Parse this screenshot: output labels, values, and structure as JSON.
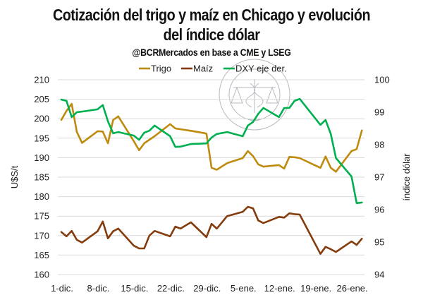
{
  "chart_data": {
    "type": "line",
    "title": "Cotización del trigo y maíz en Chicago y evolución del índice dólar",
    "title_lines": [
      "Cotización del trigo y maíz en Chicago y evolución",
      "del índice dólar"
    ],
    "subtitle": "@BCRMercados en base a CME y LSEG",
    "xlabel": "",
    "ylabel": "U$S/t",
    "y2label": "índice dólar",
    "ylim": [
      160,
      210
    ],
    "y_ticks": [
      160,
      165,
      170,
      175,
      180,
      185,
      190,
      195,
      200,
      205,
      210
    ],
    "y2lim": [
      94,
      100
    ],
    "y2_ticks": [
      94,
      95,
      96,
      97,
      98,
      99,
      100
    ],
    "x_tick_labels": [
      "1-dic.",
      "8-dic.",
      "15-dic.",
      "22-dic.",
      "29-dic.",
      "5-ene.",
      "12-ene.",
      "19-ene.",
      "26-ene."
    ],
    "x_tick_days": [
      0,
      7,
      14,
      21,
      28,
      35,
      42,
      49,
      56
    ],
    "grid": true,
    "legend_position": "top-center",
    "x_days": [
      0,
      1,
      2,
      3,
      4,
      7,
      8,
      9,
      10,
      11,
      14,
      15,
      16,
      17,
      18,
      21,
      22,
      23,
      25,
      28,
      29,
      30,
      32,
      35,
      36,
      37,
      38,
      39,
      42,
      43,
      44,
      45,
      46,
      50,
      51,
      52,
      53,
      56,
      57,
      58
    ],
    "x": [
      "1-dic.",
      "2-dic.",
      "3-dic.",
      "4-dic.",
      "5-dic.",
      "8-dic.",
      "9-dic.",
      "10-dic.",
      "11-dic.",
      "12-dic.",
      "15-dic.",
      "16-dic.",
      "17-dic.",
      "18-dic.",
      "19-dic.",
      "22-dic.",
      "23-dic.",
      "24-dic.",
      "26-dic.",
      "29-dic.",
      "30-dic.",
      "31-dic.",
      "2-ene.",
      "5-ene.",
      "6-ene.",
      "7-ene.",
      "8-ene.",
      "9-ene.",
      "12-ene.",
      "13-ene.",
      "14-ene.",
      "15-ene.",
      "16-ene.",
      "20-ene.",
      "21-ene.",
      "22-ene.",
      "23-ene.",
      "26-ene.",
      "27-ene.",
      "28-ene."
    ],
    "series": [
      {
        "name": "Trigo",
        "axis": "left",
        "color": "#bf8b0e",
        "values": [
          199.7,
          202.0,
          203.8,
          196.6,
          193.8,
          196.8,
          196.7,
          193.7,
          199.7,
          200.6,
          194.2,
          191.9,
          193.7,
          194.6,
          195.5,
          198.6,
          197.5,
          197.3,
          196.9,
          196.2,
          187.4,
          186.9,
          188.6,
          189.9,
          191.7,
          190.4,
          188.3,
          187.7,
          188.1,
          187.2,
          190.2,
          190.1,
          189.9,
          187.4,
          190.3,
          187.4,
          186.4,
          191.7,
          192.2,
          197.0
        ]
      },
      {
        "name": "Maíz",
        "axis": "left",
        "color": "#843c0c",
        "values": [
          170.9,
          169.8,
          171.2,
          168.9,
          168.2,
          171.1,
          173.6,
          169.3,
          171.1,
          171.8,
          167.4,
          166.7,
          166.7,
          170.0,
          171.2,
          169.8,
          172.3,
          171.8,
          173.4,
          169.6,
          173.0,
          171.8,
          175.0,
          176.1,
          177.4,
          177.0,
          173.9,
          173.2,
          174.8,
          174.6,
          175.7,
          175.5,
          175.4,
          165.3,
          167.1,
          166.5,
          165.8,
          168.5,
          167.6,
          169.2
        ]
      },
      {
        "name": "DXY eje der.",
        "axis": "right",
        "color": "#00b050",
        "values": [
          99.39,
          99.35,
          98.85,
          99.0,
          99.02,
          99.09,
          99.22,
          98.72,
          98.35,
          98.39,
          98.28,
          98.15,
          98.37,
          98.43,
          98.59,
          98.26,
          97.93,
          97.94,
          98.02,
          98.04,
          98.22,
          98.33,
          98.39,
          98.26,
          98.59,
          98.7,
          98.95,
          99.13,
          98.85,
          99.13,
          99.13,
          99.35,
          99.41,
          98.61,
          98.76,
          98.33,
          97.59,
          97.02,
          96.2,
          96.22
        ]
      }
    ],
    "watermark": "BOLSA DE COMERCIO DE ROSARIO"
  }
}
